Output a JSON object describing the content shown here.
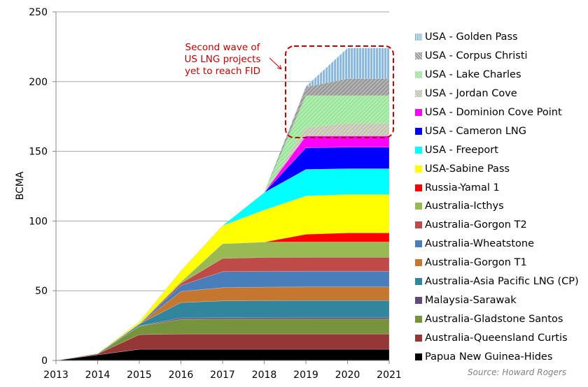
{
  "chart_data": {
    "type": "area",
    "stacked": true,
    "title": "",
    "xlabel": "",
    "ylabel": "BCMA",
    "x": [
      2013,
      2014,
      2015,
      2016,
      2017,
      2018,
      2019,
      2020,
      2021
    ],
    "ylim": [
      0,
      250
    ],
    "yticks": [
      0,
      50,
      100,
      150,
      200,
      250
    ],
    "grid": "horizontal",
    "legend_placement": "right",
    "series": [
      {
        "name": "Papua New Guinea-Hides",
        "color": "#000000",
        "values": [
          0,
          4,
          8,
          8,
          8,
          8,
          8,
          8,
          8
        ]
      },
      {
        "name": "Australia-Queensland Curtis",
        "color": "#953735",
        "values": [
          0,
          0.7,
          10.5,
          11,
          11,
          11,
          11,
          11,
          11
        ]
      },
      {
        "name": "Australia-Gladstone Santos",
        "color": "#77933c",
        "values": [
          0,
          0.2,
          6,
          10.5,
          10.7,
          10.7,
          10.7,
          10.7,
          10.7
        ]
      },
      {
        "name": "Malaysia-Sarawak",
        "color": "#604a7b",
        "values": [
          0,
          0,
          0.3,
          1,
          1,
          1.2,
          1.3,
          1.3,
          1.3
        ]
      },
      {
        "name": "Australia-Asia Pacific LNG (CP)",
        "color": "#31859c",
        "values": [
          0,
          0,
          1.3,
          11,
          12,
          12,
          12,
          12,
          12
        ]
      },
      {
        "name": "Australia-Gorgon T1",
        "color": "#c5762f",
        "values": [
          0,
          0,
          0,
          8,
          9.5,
          9.7,
          9.7,
          9.7,
          9.7
        ]
      },
      {
        "name": "Australia-Wheatstone",
        "color": "#4a7ebb",
        "values": [
          0,
          0,
          0,
          4.3,
          11.5,
          11.3,
          11.3,
          11.3,
          11.3
        ]
      },
      {
        "name": "Australia-Gorgon T2",
        "color": "#be4b48",
        "values": [
          0,
          0,
          0,
          1.5,
          9.5,
          10,
          10,
          10,
          10
        ]
      },
      {
        "name": "Australia-Icthys",
        "color": "#98b954",
        "values": [
          0,
          0,
          0,
          1,
          10.5,
          11,
          11,
          11,
          11
        ]
      },
      {
        "name": "Russia-Yamal 1",
        "color": "#ff0000",
        "values": [
          0,
          0,
          0,
          0,
          0,
          0,
          5.5,
          6.5,
          6.5
        ]
      },
      {
        "name": "USA-Sabine Pass",
        "color": "#ffff00",
        "values": [
          0,
          0,
          1.5,
          8,
          13,
          23,
          27.5,
          27.5,
          27.5
        ]
      },
      {
        "name": "USA -  Freeport",
        "color": "#00ffff",
        "values": [
          0,
          0,
          0,
          0,
          0,
          12.5,
          19,
          18.5,
          18.5
        ]
      },
      {
        "name": "USA -  Cameron LNG",
        "color": "#0000ff",
        "values": [
          0,
          0,
          0,
          0,
          0,
          0,
          15.5,
          15.5,
          15.5
        ]
      },
      {
        "name": "USA -  Dominion Cove Point",
        "color": "#ff00ff",
        "values": [
          0,
          0,
          0,
          0,
          0,
          0,
          8.5,
          8,
          8
        ]
      },
      {
        "name": "USA -  Jordan Cove",
        "color": "#c4c4b0",
        "pattern": "hatch",
        "values": [
          0,
          0,
          0,
          0,
          0,
          0,
          6,
          9,
          9
        ]
      },
      {
        "name": "USA -  Lake Charles",
        "color": "#99e699",
        "pattern": "hatch",
        "values": [
          0,
          0,
          0,
          0,
          0,
          0,
          23,
          20,
          20
        ]
      },
      {
        "name": "USA -  Corpus Christi",
        "color": "#999999",
        "pattern": "hatch",
        "values": [
          0,
          0,
          0,
          0,
          0,
          0,
          6,
          12,
          12
        ]
      },
      {
        "name": "USA -  Golden Pass",
        "color": "#8ab7dd",
        "pattern": "vertical-stripes",
        "values": [
          0,
          0,
          0,
          0,
          0,
          0,
          0.5,
          22,
          22
        ]
      }
    ],
    "annotation": {
      "lines": [
        "Second wave of",
        "US LNG projects",
        "yet to reach FID"
      ],
      "color": "#c00000"
    },
    "source": "Source: Howard Rogers"
  }
}
